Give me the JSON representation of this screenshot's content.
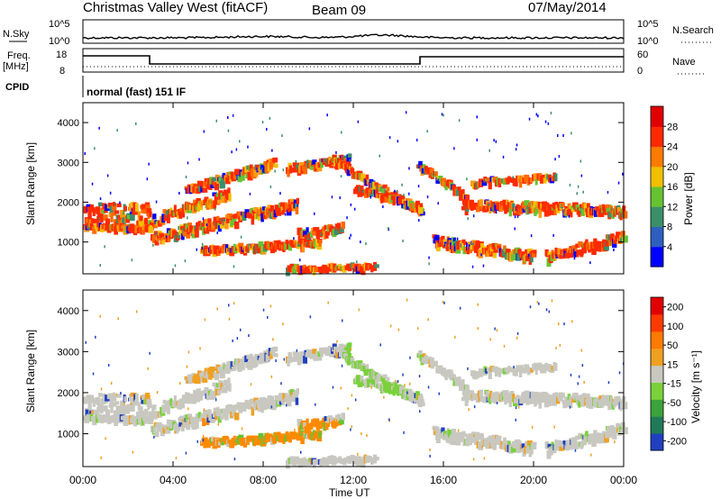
{
  "header": {
    "station": "Christmas Valley West (fitACF)",
    "beam": "Beam 09",
    "date": "07/May/2014"
  },
  "top_labels": {
    "nsky": "N.Sky",
    "nsearch": "N.Search",
    "freq": "Freq.",
    "freq_unit": "[MHz]",
    "nave": "Nave",
    "cpid": "CPID",
    "cpid_value": "normal (fast) 151 IF",
    "nsky_tick_hi": "10^5",
    "nsky_tick_lo": "10^0",
    "nsearch_tick_hi": "10^5",
    "nsearch_tick_lo": "10^0",
    "freq_tick_hi": "18",
    "freq_tick_lo": "8",
    "nave_tick_hi": "60",
    "nave_tick_lo": "0"
  },
  "chart_data": [
    {
      "type": "heatmap",
      "name": "power",
      "ylabel": "Slant Range [km]",
      "ylim": [
        200,
        4500
      ],
      "yticks": [
        "1000",
        "2000",
        "3000",
        "4000"
      ],
      "colorbar_label": "Power [dB]",
      "colorbar_ticks": [
        "4",
        "8",
        "12",
        "16",
        "20",
        "24",
        "28"
      ],
      "colorbar_colors": [
        "#0000ff",
        "#2e5fbf",
        "#3a8f6a",
        "#66c233",
        "#f0c000",
        "#ff7a00",
        "#ff2a00",
        "#e00000"
      ]
    },
    {
      "type": "heatmap",
      "name": "velocity",
      "ylabel": "Slant Range [km]",
      "ylim": [
        200,
        4500
      ],
      "yticks": [
        "1000",
        "2000",
        "3000",
        "4000"
      ],
      "colorbar_label": "Velocity [m s⁻¹]",
      "colorbar_ticks": [
        "200",
        "100",
        "50",
        "15",
        "-15",
        "-50",
        "-100",
        "-200"
      ],
      "colorbar_colors": [
        "#2040c0",
        "#1f7a5a",
        "#3aa33a",
        "#7ad13a",
        "#c8c8c0",
        "#f0a020",
        "#ff7a00",
        "#ff3a00",
        "#e00000"
      ]
    }
  ],
  "xaxis": {
    "label": "Time UT",
    "ticks": [
      "00:00",
      "04:00",
      "08:00",
      "12:00",
      "16:00",
      "20:00",
      "00:00"
    ]
  }
}
